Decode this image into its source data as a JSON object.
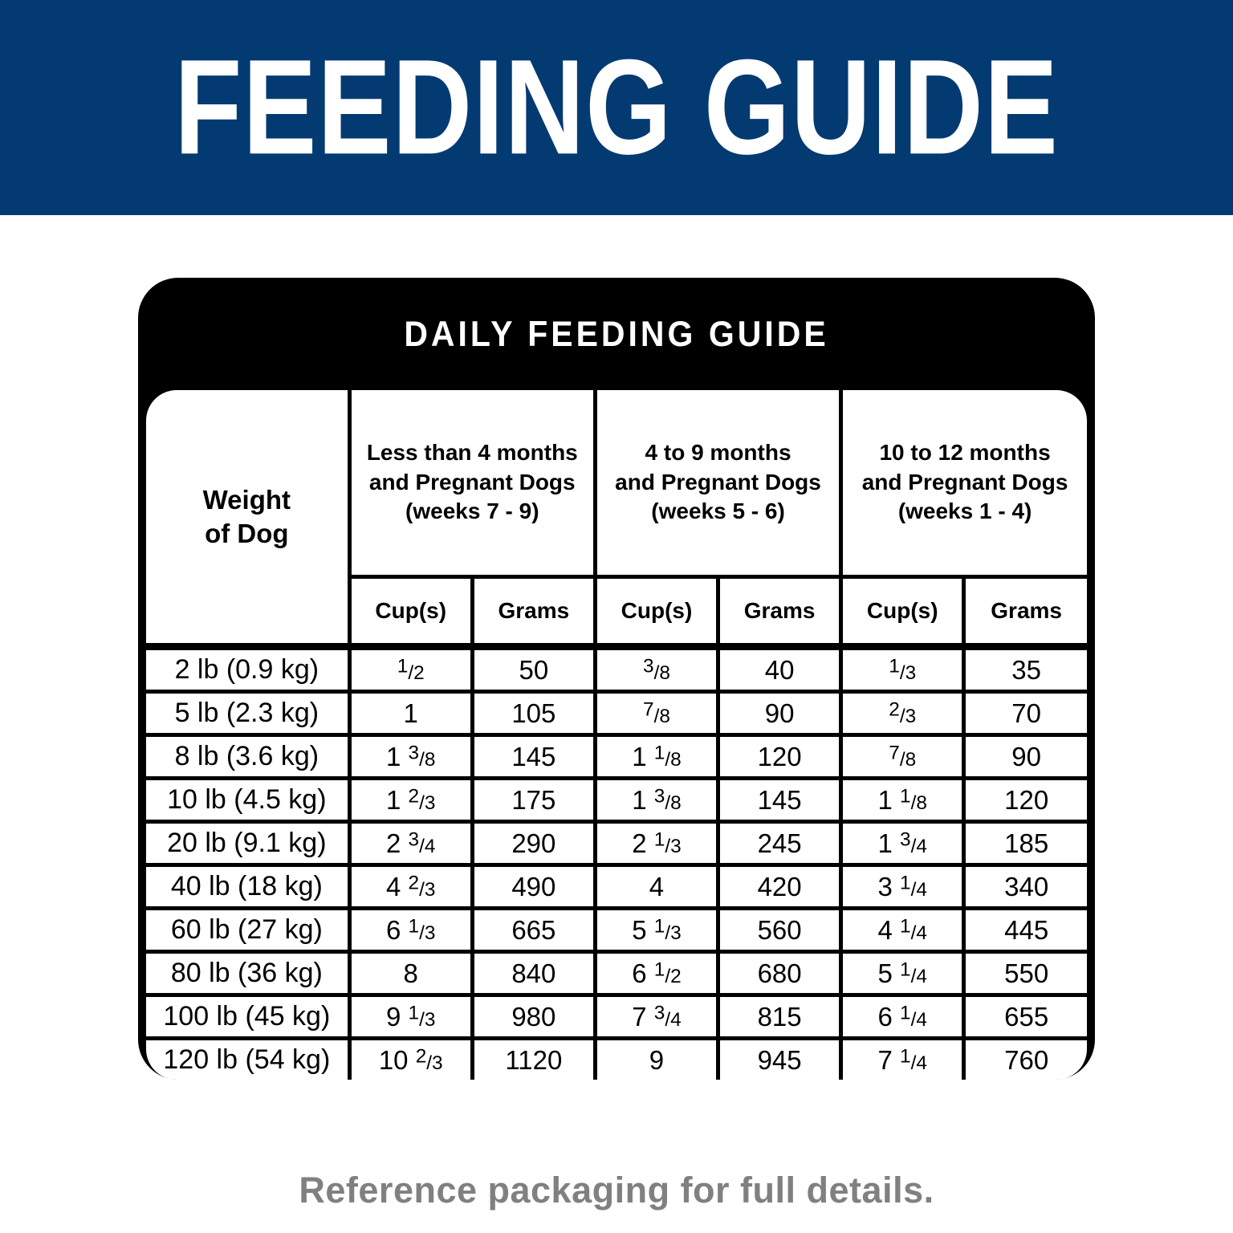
{
  "banner": {
    "title": "FEEDING GUIDE",
    "background_color": "#043a72",
    "text_color": "#ffffff"
  },
  "card": {
    "title": "DAILY FEEDING GUIDE",
    "header_background": "#000000",
    "header_text_color": "#ffffff",
    "body_background": "#ffffff",
    "border_color": "#000000"
  },
  "table": {
    "weight_header": "Weight\nof Dog",
    "groups": [
      {
        "label": "Less than 4 months\nand Pregnant Dogs\n(weeks 7 - 9)"
      },
      {
        "label": "4 to 9 months\nand Pregnant Dogs\n(weeks 5 - 6)"
      },
      {
        "label": "10 to 12 months\nand Pregnant Dogs\n(weeks 1 - 4)"
      }
    ],
    "subheaders": [
      "Cup(s)",
      "Grams"
    ],
    "rows": [
      {
        "weight": "2 lb (0.9 kg)",
        "cells": [
          "1/2",
          "50",
          "3/8",
          "40",
          "1/3",
          "35"
        ]
      },
      {
        "weight": "5 lb (2.3 kg)",
        "cells": [
          "1",
          "105",
          "7/8",
          "90",
          "2/3",
          "70"
        ]
      },
      {
        "weight": "8 lb (3.6 kg)",
        "cells": [
          "1 3/8",
          "145",
          "1 1/8",
          "120",
          "7/8",
          "90"
        ]
      },
      {
        "weight": "10 lb (4.5 kg)",
        "cells": [
          "1 2/3",
          "175",
          "1 3/8",
          "145",
          "1 1/8",
          "120"
        ]
      },
      {
        "weight": "20 lb (9.1 kg)",
        "cells": [
          "2 3/4",
          "290",
          "2 1/3",
          "245",
          "1 3/4",
          "185"
        ]
      },
      {
        "weight": "40 lb (18 kg)",
        "cells": [
          "4 2/3",
          "490",
          "4",
          "420",
          "3 1/4",
          "340"
        ]
      },
      {
        "weight": "60 lb (27 kg)",
        "cells": [
          "6 1/3",
          "665",
          "5 1/3",
          "560",
          "4 1/4",
          "445"
        ]
      },
      {
        "weight": "80 lb (36 kg)",
        "cells": [
          "8",
          "840",
          "6 1/2",
          "680",
          "5 1/4",
          "550"
        ]
      },
      {
        "weight": "100 lb (45 kg)",
        "cells": [
          "9 1/3",
          "980",
          "7 3/4",
          "815",
          "6 1/4",
          "655"
        ]
      },
      {
        "weight": "120 lb (54 kg)",
        "cells": [
          "10 2/3",
          "1120",
          "9",
          "945",
          "7 1/4",
          "760"
        ]
      }
    ]
  },
  "footer": {
    "note": "Reference packaging for full details."
  }
}
